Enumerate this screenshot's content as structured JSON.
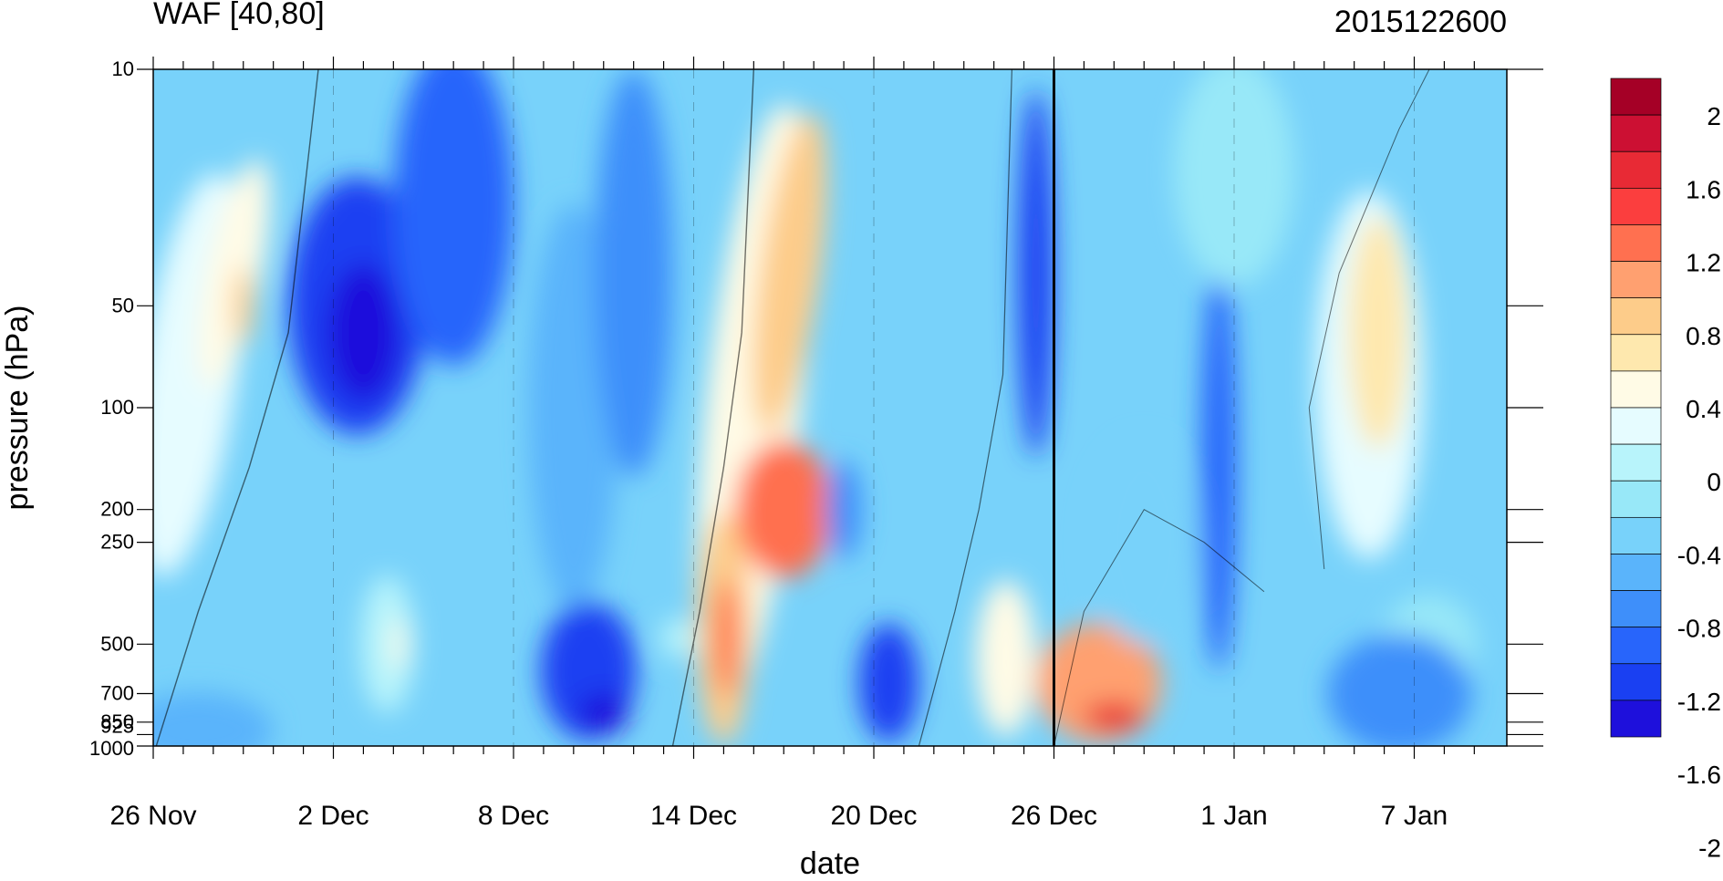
{
  "chart_data": {
    "type": "heatmap",
    "title": "WAF [40,80]",
    "timestamp": "2015122600",
    "xlabel": "date",
    "ylabel": "pressure (hPa)",
    "y_scale": "log",
    "y_reversed": true,
    "x_ticks": [
      "26 Nov",
      "2 Dec",
      "8 Dec",
      "14 Dec",
      "20 Dec",
      "26 Dec",
      "1 Jan",
      "7 Jan"
    ],
    "y_ticks": [
      "10",
      "50",
      "100",
      "200",
      "250",
      "500",
      "700",
      "850",
      "925",
      "1000"
    ],
    "y_tick_values": [
      10,
      50,
      100,
      200,
      250,
      500,
      700,
      850,
      925,
      1000
    ],
    "xlim": [
      "26 Nov",
      "9 Jan"
    ],
    "ylim": [
      1000,
      10
    ],
    "current_time_marker": "26 Dec",
    "colorbar": {
      "labels": [
        "2",
        "1.6",
        "1.2",
        "0.8",
        "0.4",
        "0",
        "-0.4",
        "-0.8",
        "-1.2",
        "-1.6",
        "-2"
      ],
      "levels": [
        2.2,
        2.0,
        1.8,
        1.6,
        1.4,
        1.2,
        1.0,
        0.8,
        0.6,
        0.4,
        0.2,
        0.0,
        -0.2,
        -0.4,
        -0.6,
        -0.8,
        -1.0,
        -1.2,
        -1.4,
        -1.6,
        -1.8,
        -2.0,
        -2.2
      ],
      "colors": [
        "#a50026",
        "#cc1033",
        "#e82a35",
        "#fb3e3e",
        "#ff7050",
        "#ffa070",
        "#fdcc8a",
        "#fee8ae",
        "#fffbe6",
        "#e6fcff",
        "#b8f4fb",
        "#98e8f8",
        "#78d2fa",
        "#5ab4fb",
        "#3e8ffa",
        "#2865fb",
        "#1a40f2",
        "#1e10dc"
      ]
    }
  }
}
